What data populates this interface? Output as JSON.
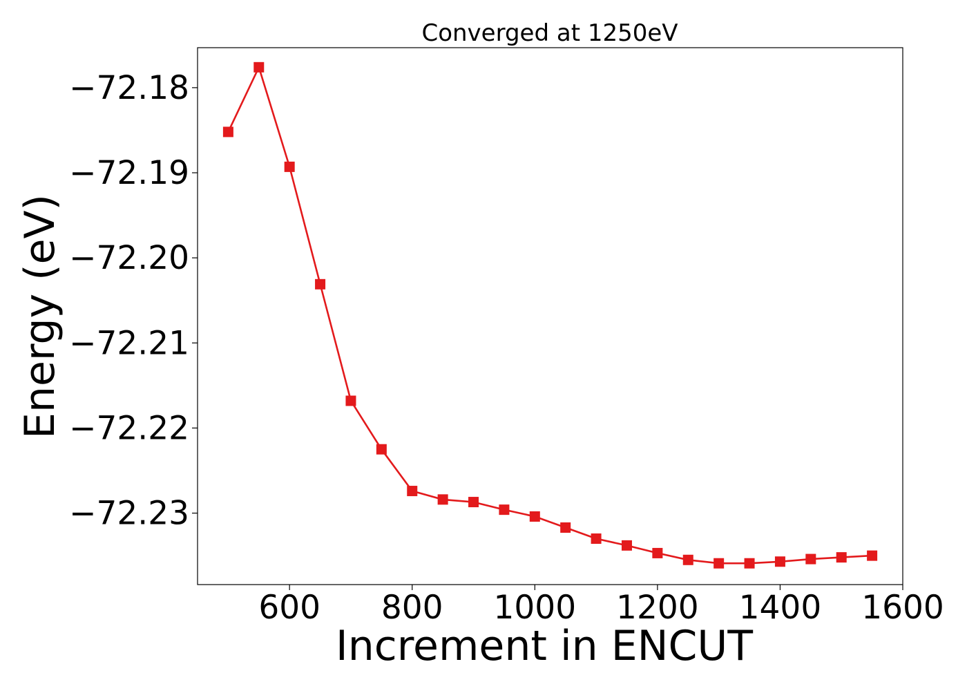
{
  "chart_data": {
    "type": "line",
    "title": "Converged at 1250eV",
    "xlabel": "Increment in ENCUT",
    "ylabel": "Energy (eV)",
    "xlim": [
      450,
      1600
    ],
    "ylim": [
      -72.2384,
      -72.1753
    ],
    "x_ticks": [
      600,
      800,
      1000,
      1200,
      1400,
      1600
    ],
    "y_ticks": [
      -72.18,
      -72.19,
      -72.2,
      -72.21,
      -72.22,
      -72.23
    ],
    "x_tick_labels": [
      "600",
      "800",
      "1000",
      "1200",
      "1400",
      "1600"
    ],
    "y_tick_labels": [
      "−72.18",
      "−72.19",
      "−72.20",
      "−72.21",
      "−72.22",
      "−72.23"
    ],
    "grid": false,
    "series": [
      {
        "color": "#e31a1c",
        "marker": "square",
        "x": [
          500,
          550,
          600,
          650,
          700,
          750,
          800,
          850,
          900,
          950,
          1000,
          1050,
          1100,
          1150,
          1200,
          1250,
          1300,
          1350,
          1400,
          1450,
          1500,
          1550
        ],
        "y": [
          -72.1852,
          -72.1776,
          -72.1893,
          -72.2031,
          -72.2168,
          -72.2225,
          -72.2274,
          -72.2284,
          -72.2287,
          -72.2296,
          -72.2304,
          -72.2317,
          -72.233,
          -72.2338,
          -72.2347,
          -72.2355,
          -72.2359,
          -72.2359,
          -72.2357,
          -72.2354,
          -72.2352,
          -72.235
        ]
      }
    ]
  }
}
